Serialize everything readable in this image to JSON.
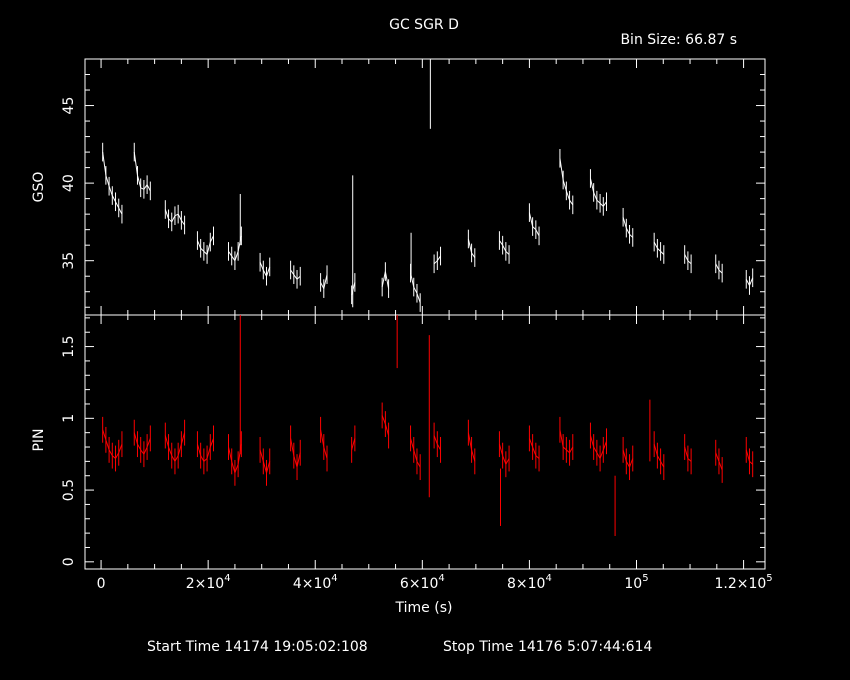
{
  "header": {
    "title": "GC SGR D",
    "bin_size": "Bin Size: 66.87 s"
  },
  "footer": {
    "start_time": "Start Time 14174 19:05:02:108",
    "stop_time": "Stop Time 14176  5:07:44:614"
  },
  "colors": {
    "background": "#000000",
    "axes": "#ffffff",
    "gso_series": "#ffffff",
    "pin_series": "#ff0000"
  },
  "chart_data": [
    {
      "type": "line",
      "panel": "top",
      "ylabel": "GSO",
      "xlabel": "",
      "xlim": [
        -3000,
        124000
      ],
      "ylim": [
        31.5,
        48
      ],
      "yticks": [
        35,
        40,
        45
      ],
      "grid": false,
      "series": [
        {
          "x": [
            300,
            900,
            1500,
            2100,
            2700,
            3300,
            3900,
            6200,
            6800,
            7400,
            8000,
            8600,
            9200,
            12000,
            12600,
            13200,
            13800,
            14400,
            15000,
            15600,
            18000,
            18600,
            19200,
            19800,
            20400,
            21000,
            23800,
            24400,
            25000,
            25600,
            26200,
            29700,
            30300,
            30900,
            31500,
            35400,
            36000,
            36600,
            37200,
            41000,
            41600,
            42200,
            46800,
            47400,
            52500,
            53100,
            53700,
            57800,
            58400,
            59000,
            59600,
            62200,
            62800,
            63400,
            68600,
            69200,
            69800,
            74400,
            75000,
            75600,
            76200,
            80000,
            80600,
            81200,
            81800,
            85700,
            86300,
            86900,
            87500,
            88100,
            91400,
            92000,
            92600,
            93200,
            93800,
            94400,
            97500,
            98100,
            98700,
            99300,
            103300,
            103900,
            104500,
            105100,
            109000,
            109600,
            110200,
            114800,
            115400,
            116000,
            120500,
            121100,
            121700
          ],
          "y": [
            42.0,
            40.5,
            39.8,
            39.2,
            38.8,
            38.4,
            38.0,
            42.0,
            40.5,
            39.7,
            39.6,
            39.9,
            39.5,
            38.3,
            37.7,
            37.5,
            37.9,
            38.0,
            37.6,
            37.3,
            36.3,
            35.8,
            35.6,
            35.4,
            36.2,
            36.6,
            35.6,
            35.3,
            35.0,
            35.6,
            36.6,
            34.9,
            34.4,
            34.0,
            34.6,
            34.4,
            34.1,
            33.8,
            34.0,
            33.6,
            33.2,
            34.1,
            32.8,
            33.6,
            33.3,
            34.3,
            33.2,
            34.2,
            33.3,
            32.9,
            32.3,
            34.8,
            35.0,
            35.3,
            36.4,
            35.5,
            35.2,
            36.3,
            36.0,
            35.6,
            35.4,
            38.1,
            37.2,
            37.0,
            36.6,
            41.6,
            40.2,
            39.5,
            38.9,
            38.6,
            40.3,
            39.4,
            38.9,
            38.7,
            38.5,
            38.8,
            37.8,
            37.1,
            36.7,
            36.5,
            36.2,
            35.8,
            35.6,
            35.4,
            35.4,
            35.0,
            34.8,
            34.8,
            34.4,
            34.2,
            33.8,
            33.4,
            33.9
          ]
        }
      ],
      "spikes": [
        {
          "x": 47000,
          "y": [
            32.0,
            40.5
          ]
        },
        {
          "x": 61500,
          "y": [
            43.5,
            48.0
          ]
        },
        {
          "x": 26000,
          "y": [
            36.0,
            39.3
          ]
        },
        {
          "x": 57900,
          "y": [
            34.0,
            36.8
          ]
        }
      ]
    },
    {
      "type": "line",
      "panel": "bottom",
      "ylabel": "PIN",
      "xlabel": "Time (s)",
      "xlim": [
        -3000,
        124000
      ],
      "ylim": [
        -0.05,
        1.72
      ],
      "yticks": [
        0,
        0.5,
        1,
        1.5
      ],
      "xticks": [
        0,
        20000,
        40000,
        60000,
        80000,
        100000,
        120000
      ],
      "grid": false,
      "series": [
        {
          "x": [
            300,
            900,
            1500,
            2100,
            2700,
            3300,
            3900,
            6200,
            6800,
            7400,
            8000,
            8600,
            9200,
            12000,
            12600,
            13200,
            13800,
            14400,
            15000,
            15600,
            18000,
            18600,
            19200,
            19800,
            20400,
            21000,
            23800,
            24400,
            25000,
            25600,
            26200,
            29700,
            30300,
            30900,
            31500,
            35400,
            36000,
            36600,
            37200,
            41000,
            41600,
            42200,
            46800,
            47400,
            52500,
            53100,
            53700,
            57800,
            58400,
            59000,
            59600,
            62200,
            62800,
            63400,
            68600,
            69200,
            69800,
            74400,
            75000,
            75600,
            76200,
            80000,
            80600,
            81200,
            81800,
            85700,
            86300,
            86900,
            87500,
            88100,
            91400,
            92000,
            92600,
            93200,
            93800,
            94400,
            97500,
            98100,
            98700,
            99300,
            103300,
            103900,
            104500,
            105100,
            109000,
            109600,
            110200,
            114800,
            115400,
            116000,
            120500,
            121100,
            121700
          ],
          "y": [
            0.92,
            0.85,
            0.78,
            0.74,
            0.72,
            0.76,
            0.82,
            0.9,
            0.82,
            0.78,
            0.75,
            0.8,
            0.86,
            0.88,
            0.8,
            0.74,
            0.7,
            0.74,
            0.82,
            0.9,
            0.82,
            0.74,
            0.7,
            0.72,
            0.8,
            0.86,
            0.8,
            0.7,
            0.62,
            0.68,
            0.82,
            0.78,
            0.7,
            0.62,
            0.7,
            0.86,
            0.74,
            0.66,
            0.76,
            0.92,
            0.8,
            0.72,
            0.78,
            0.86,
            1.02,
            0.96,
            0.88,
            0.86,
            0.78,
            0.7,
            0.66,
            0.88,
            0.82,
            0.78,
            0.9,
            0.78,
            0.7,
            0.82,
            0.74,
            0.68,
            0.72,
            0.86,
            0.8,
            0.74,
            0.72,
            0.92,
            0.8,
            0.78,
            0.76,
            0.8,
            0.88,
            0.8,
            0.76,
            0.72,
            0.78,
            0.84,
            0.78,
            0.7,
            0.66,
            0.72,
            0.82,
            0.74,
            0.7,
            0.66,
            0.8,
            0.72,
            0.7,
            0.76,
            0.7,
            0.64,
            0.78,
            0.7,
            0.68
          ]
        }
      ],
      "spikes": [
        {
          "x": 26000,
          "y": [
            0.75,
            1.72
          ]
        },
        {
          "x": 55300,
          "y": [
            1.35,
            1.72
          ]
        },
        {
          "x": 61300,
          "y": [
            0.45,
            1.58
          ]
        },
        {
          "x": 74600,
          "y": [
            0.25,
            0.65
          ]
        },
        {
          "x": 96000,
          "y": [
            0.18,
            0.6
          ]
        },
        {
          "x": 102500,
          "y": [
            0.7,
            1.13
          ]
        }
      ]
    }
  ]
}
